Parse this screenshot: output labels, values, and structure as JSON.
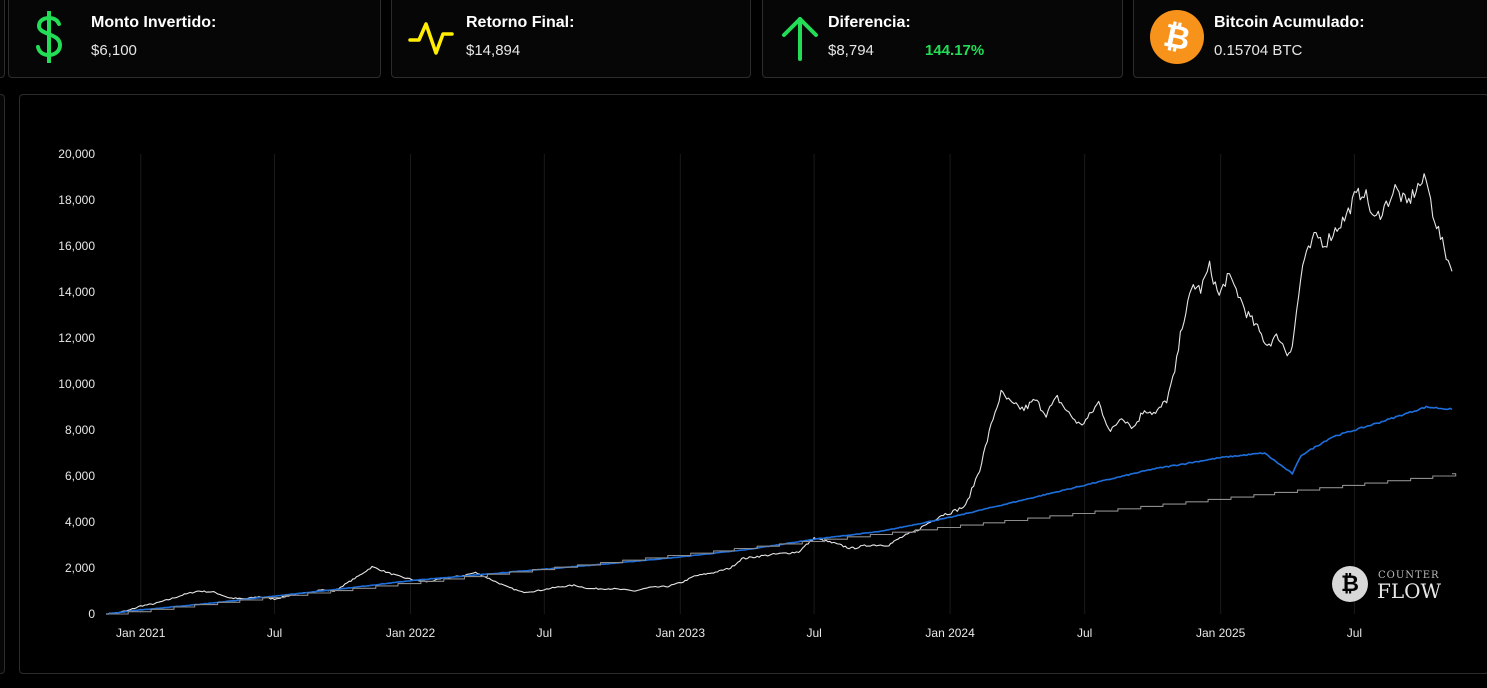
{
  "stats": {
    "invested": {
      "label": "Monto Invertido:",
      "value": "$6,100",
      "icon": "dollar-icon",
      "color": "#22dd55"
    },
    "final_return": {
      "label": "Retorno Final:",
      "value": "$14,894",
      "icon": "pulse-icon",
      "color": "#ffee00"
    },
    "difference": {
      "label": "Diferencia:",
      "value": "$8,794",
      "percent": "144.17%",
      "icon": "arrow-up-icon",
      "color": "#22dd55"
    },
    "btc": {
      "label": "Bitcoin Acumulado:",
      "value": "0.15704 BTC",
      "icon": "bitcoin-icon",
      "color": "#f7931a"
    }
  },
  "watermark": {
    "top": "COUNTER",
    "bottom": "FLOW",
    "coin": "₿"
  },
  "chart_data": {
    "type": "line",
    "x_tick_labels": [
      "Jan 2021",
      "Jul",
      "Jan 2022",
      "Jul",
      "Jan 2023",
      "Jul",
      "Jan 2024",
      "Jul",
      "Jan 2025",
      "Jul"
    ],
    "y_tick_labels": [
      "0",
      "2,000",
      "4,000",
      "6,000",
      "8,000",
      "10,000",
      "12,000",
      "14,000",
      "16,000",
      "18,000",
      "20,000"
    ],
    "ylim": [
      0,
      20000
    ],
    "xlim": [
      "2020-11-15",
      "2025-11-10"
    ],
    "grid": "vertical",
    "series": [
      {
        "color": "#e6e6e6",
        "x": [
          "2020-11-15",
          "2020-12-01",
          "2020-12-15",
          "2021-01-01",
          "2021-01-20",
          "2021-02-10",
          "2021-03-01",
          "2021-03-20",
          "2021-04-10",
          "2021-05-01",
          "2021-05-20",
          "2021-06-10",
          "2021-07-01",
          "2021-07-20",
          "2021-08-10",
          "2021-09-01",
          "2021-09-20",
          "2021-10-10",
          "2021-10-25",
          "2021-11-10",
          "2021-12-01",
          "2021-12-20",
          "2022-01-10",
          "2022-01-25",
          "2022-02-15",
          "2022-03-10",
          "2022-03-30",
          "2022-04-20",
          "2022-05-10",
          "2022-06-01",
          "2022-06-20",
          "2022-07-15",
          "2022-08-10",
          "2022-09-01",
          "2022-10-01",
          "2022-11-01",
          "2022-11-20",
          "2022-12-15",
          "2023-01-05",
          "2023-01-20",
          "2023-02-15",
          "2023-03-10",
          "2023-03-25",
          "2023-04-15",
          "2023-05-10",
          "2023-06-10",
          "2023-07-01",
          "2023-07-25",
          "2023-08-20",
          "2023-09-15",
          "2023-10-10",
          "2023-10-25",
          "2023-11-15",
          "2023-12-05",
          "2023-12-20",
          "2024-01-05",
          "2024-01-22",
          "2024-02-10",
          "2024-02-28",
          "2024-03-10",
          "2024-03-25",
          "2024-04-10",
          "2024-04-25",
          "2024-05-10",
          "2024-05-25",
          "2024-06-10",
          "2024-06-25",
          "2024-07-05",
          "2024-07-20",
          "2024-08-05",
          "2024-08-20",
          "2024-09-05",
          "2024-09-20",
          "2024-10-05",
          "2024-10-20",
          "2024-10-31",
          "2024-11-10",
          "2024-11-25",
          "2024-12-05",
          "2024-12-17",
          "2024-12-30",
          "2025-01-10",
          "2025-01-22",
          "2025-02-05",
          "2025-02-20",
          "2025-03-05",
          "2025-03-20",
          "2025-04-01",
          "2025-04-08",
          "2025-04-22",
          "2025-05-10",
          "2025-05-22",
          "2025-06-05",
          "2025-06-20",
          "2025-07-01",
          "2025-07-14",
          "2025-07-28",
          "2025-08-13",
          "2025-08-25",
          "2025-09-10",
          "2025-09-25",
          "2025-10-06",
          "2025-10-15",
          "2025-10-28",
          "2025-11-10"
        ],
        "y": [
          0,
          60,
          150,
          350,
          450,
          650,
          850,
          1000,
          950,
          700,
          650,
          750,
          650,
          800,
          900,
          1050,
          1000,
          1400,
          1700,
          2050,
          1800,
          1600,
          1450,
          1400,
          1550,
          1650,
          1800,
          1500,
          1200,
          950,
          1000,
          1150,
          1250,
          1100,
          1100,
          1000,
          1150,
          1200,
          1400,
          1650,
          1800,
          2000,
          2400,
          2500,
          2600,
          2700,
          3300,
          3100,
          2850,
          3000,
          3000,
          3300,
          3600,
          4000,
          4300,
          4450,
          4700,
          6300,
          8500,
          9600,
          9100,
          8900,
          9300,
          8700,
          9400,
          8700,
          8200,
          8500,
          9200,
          7900,
          8600,
          8100,
          8900,
          8700,
          9300,
          10500,
          12600,
          14300,
          14100,
          15100,
          13800,
          14700,
          14100,
          13100,
          12400,
          11700,
          12100,
          11300,
          11700,
          15200,
          16500,
          16100,
          16700,
          17300,
          18100,
          18400,
          17100,
          17800,
          18500,
          17800,
          18600,
          18900,
          17500,
          16100,
          14900
        ]
      },
      {
        "color": "#1e6fdc",
        "x": [
          "2020-11-15",
          "2021-01-01",
          "2021-04-01",
          "2021-07-01",
          "2021-10-01",
          "2022-01-01",
          "2022-04-01",
          "2022-07-01",
          "2022-10-01",
          "2023-01-01",
          "2023-04-01",
          "2023-07-01",
          "2023-10-01",
          "2024-01-01",
          "2024-04-01",
          "2024-07-01",
          "2024-10-01",
          "2025-01-01",
          "2025-03-01",
          "2025-04-08",
          "2025-04-20",
          "2025-06-01",
          "2025-08-01",
          "2025-10-06",
          "2025-11-10"
        ],
        "y": [
          0,
          180,
          450,
          780,
          1100,
          1450,
          1700,
          1950,
          2200,
          2480,
          2800,
          3250,
          3600,
          4200,
          4900,
          5600,
          6300,
          6800,
          7000,
          6100,
          6900,
          7700,
          8300,
          9000,
          8900
        ]
      },
      {
        "color": "#8c8c8c",
        "x": [
          "2020-11-15",
          "2025-11-10"
        ],
        "y": [
          0,
          6100
        ],
        "step": "monthly"
      }
    ]
  }
}
